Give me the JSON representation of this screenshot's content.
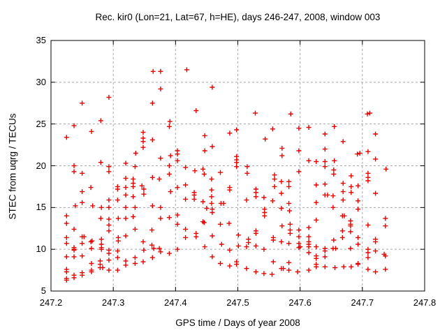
{
  "chart_data": {
    "type": "scatter",
    "title": "Rec. kir0 (Lon=21, Lat=67, h=HE), days 246-247, 2008, window 003",
    "xlabel": "GPS time / Days of year 2008",
    "ylabel": "STEC from uqrg / TECUs",
    "xlim": [
      247.2,
      247.8
    ],
    "ylim": [
      5,
      35
    ],
    "xticks": [
      247.2,
      247.3,
      247.4,
      247.5,
      247.6,
      247.7,
      247.8
    ],
    "yticks": [
      5,
      10,
      15,
      20,
      25,
      30,
      35
    ],
    "grid": true,
    "legend": "none",
    "marker": {
      "shape": "plus",
      "color": "#e60000"
    },
    "grid_color": "#a8a8a8",
    "axis_color": "#000000",
    "series_name": "STEC observations",
    "points": [
      [
        247.364,
        31.3
      ],
      [
        247.376,
        31.3
      ],
      [
        247.418,
        31.5
      ],
      [
        247.376,
        29.2
      ],
      [
        247.459,
        29.4
      ],
      [
        247.293,
        28.2
      ],
      [
        247.25,
        27.5
      ],
      [
        247.363,
        27.5
      ],
      [
        247.433,
        26.6
      ],
      [
        247.528,
        26.3
      ],
      [
        247.585,
        26.2
      ],
      [
        247.708,
        26.2
      ],
      [
        247.712,
        26.3
      ],
      [
        247.28,
        25.4
      ],
      [
        247.391,
        25.3
      ],
      [
        247.237,
        24.8
      ],
      [
        247.39,
        24.7
      ],
      [
        247.265,
        24.1
      ],
      [
        247.225,
        23.4
      ],
      [
        247.348,
        24.0
      ],
      [
        247.348,
        23.3
      ],
      [
        247.363,
        23.1
      ],
      [
        247.348,
        22.9
      ],
      [
        247.348,
        22.2
      ],
      [
        247.336,
        21.5
      ],
      [
        247.376,
        20.9
      ],
      [
        247.392,
        21.2
      ],
      [
        247.498,
        24.3
      ],
      [
        247.556,
        24.4
      ],
      [
        247.598,
        24.5
      ],
      [
        247.487,
        23.9
      ],
      [
        247.447,
        23.6
      ],
      [
        247.544,
        23.2
      ],
      [
        247.459,
        22.3
      ],
      [
        247.447,
        21.8
      ],
      [
        247.571,
        22.1
      ],
      [
        247.598,
        21.8
      ],
      [
        247.571,
        21.2
      ],
      [
        247.403,
        21.8
      ],
      [
        247.403,
        21.4
      ],
      [
        247.403,
        20.6
      ],
      [
        247.498,
        21.1
      ],
      [
        247.498,
        20.7
      ],
      [
        247.498,
        20.4
      ],
      [
        247.614,
        24.6
      ],
      [
        247.655,
        24.7
      ],
      [
        247.64,
        23.8
      ],
      [
        247.721,
        23.8
      ],
      [
        247.669,
        22.9
      ],
      [
        247.64,
        22.0
      ],
      [
        247.692,
        21.4
      ],
      [
        247.696,
        21.5
      ],
      [
        247.709,
        21.7
      ],
      [
        247.721,
        20.8
      ],
      [
        247.614,
        20.6
      ],
      [
        247.626,
        20.5
      ],
      [
        247.64,
        20.5
      ],
      [
        247.655,
        20.6
      ],
      [
        247.28,
        20.4
      ],
      [
        247.32,
        20.3
      ],
      [
        247.237,
        20.0
      ],
      [
        247.293,
        19.9
      ],
      [
        247.335,
        19.9
      ],
      [
        247.39,
        20.0
      ],
      [
        247.237,
        19.3
      ],
      [
        247.25,
        19.1
      ],
      [
        247.293,
        19.3
      ],
      [
        247.39,
        19.0
      ],
      [
        247.32,
        18.5
      ],
      [
        247.332,
        18.4
      ],
      [
        247.332,
        17.9
      ],
      [
        247.363,
        18.6
      ],
      [
        247.374,
        18.4
      ],
      [
        247.307,
        17.5
      ],
      [
        247.307,
        17.2
      ],
      [
        247.32,
        17.4
      ],
      [
        247.332,
        17.5
      ],
      [
        247.346,
        17.6
      ],
      [
        247.349,
        17.2
      ],
      [
        247.25,
        16.9
      ],
      [
        247.264,
        17.4
      ],
      [
        247.392,
        16.9
      ],
      [
        247.32,
        16.5
      ],
      [
        247.332,
        16.3
      ],
      [
        247.349,
        16.6
      ],
      [
        247.293,
        15.9
      ],
      [
        247.307,
        15.9
      ],
      [
        247.239,
        15.2
      ],
      [
        247.25,
        15.6
      ],
      [
        247.267,
        15.2
      ],
      [
        247.281,
        15.0
      ],
      [
        247.293,
        15.0
      ],
      [
        247.32,
        15.0
      ],
      [
        247.335,
        15.0
      ],
      [
        247.363,
        15.2
      ],
      [
        247.376,
        15.0
      ],
      [
        247.416,
        19.8
      ],
      [
        247.431,
        19.4
      ],
      [
        247.444,
        19.6
      ],
      [
        247.446,
        19.0
      ],
      [
        247.498,
        19.9
      ],
      [
        247.515,
        19.9
      ],
      [
        247.515,
        19.1
      ],
      [
        247.472,
        19.2
      ],
      [
        247.598,
        19.3
      ],
      [
        247.458,
        18.4
      ],
      [
        247.559,
        18.9
      ],
      [
        247.559,
        18.4
      ],
      [
        247.416,
        17.7
      ],
      [
        247.458,
        17.1
      ],
      [
        247.487,
        17.4
      ],
      [
        247.487,
        17.1
      ],
      [
        247.559,
        17.5
      ],
      [
        247.57,
        18.1
      ],
      [
        247.582,
        18.1
      ],
      [
        247.582,
        17.5
      ],
      [
        247.403,
        17.4
      ],
      [
        247.43,
        16.8
      ],
      [
        247.43,
        16.5
      ],
      [
        247.458,
        16.3
      ],
      [
        247.529,
        17.2
      ],
      [
        247.529,
        16.8
      ],
      [
        247.57,
        16.7
      ],
      [
        247.416,
        16.0
      ],
      [
        247.43,
        16.0
      ],
      [
        247.444,
        15.7
      ],
      [
        247.458,
        15.5
      ],
      [
        247.473,
        15.5
      ],
      [
        247.477,
        15.5
      ],
      [
        247.514,
        15.9
      ],
      [
        247.529,
        16.3
      ],
      [
        247.542,
        16.2
      ],
      [
        247.556,
        15.8
      ],
      [
        247.582,
        15.5
      ],
      [
        247.64,
        19.9
      ],
      [
        247.654,
        19.5
      ],
      [
        247.654,
        19.0
      ],
      [
        247.738,
        19.6
      ],
      [
        247.709,
        19.1
      ],
      [
        247.709,
        18.6
      ],
      [
        247.709,
        18.2
      ],
      [
        247.682,
        18.8
      ],
      [
        247.626,
        17.7
      ],
      [
        247.64,
        17.8
      ],
      [
        247.669,
        17.9
      ],
      [
        247.682,
        17.5
      ],
      [
        247.693,
        17.6
      ],
      [
        247.669,
        16.9
      ],
      [
        247.682,
        16.8
      ],
      [
        247.64,
        16.5
      ],
      [
        247.644,
        16.5
      ],
      [
        247.653,
        16.4
      ],
      [
        247.721,
        16.7
      ],
      [
        247.669,
        15.9
      ],
      [
        247.626,
        15.6
      ],
      [
        247.693,
        15.8
      ],
      [
        247.45,
        14.9
      ],
      [
        247.459,
        14.8
      ],
      [
        247.543,
        14.8
      ],
      [
        247.57,
        14.9
      ],
      [
        247.583,
        14.6
      ],
      [
        247.653,
        15.0
      ],
      [
        247.693,
        14.8
      ],
      [
        247.225,
        14.0
      ],
      [
        247.225,
        13.1
      ],
      [
        247.28,
        13.7
      ],
      [
        247.293,
        13.6
      ],
      [
        247.293,
        12.9
      ],
      [
        247.293,
        12.2
      ],
      [
        247.308,
        13.7
      ],
      [
        247.32,
        13.7
      ],
      [
        247.332,
        13.9
      ],
      [
        247.376,
        13.7
      ],
      [
        247.39,
        13.8
      ],
      [
        247.237,
        12.4
      ],
      [
        247.335,
        12.4
      ],
      [
        247.362,
        12.3
      ],
      [
        247.225,
        11.4
      ],
      [
        247.225,
        10.7
      ],
      [
        247.237,
        10.2
      ],
      [
        247.25,
        11.5
      ],
      [
        247.253,
        11.5
      ],
      [
        247.25,
        10.7
      ],
      [
        247.264,
        10.9
      ],
      [
        247.266,
        11.0
      ],
      [
        247.281,
        11.2
      ],
      [
        247.281,
        10.6
      ],
      [
        247.281,
        10.2
      ],
      [
        247.308,
        11.4
      ],
      [
        247.308,
        11.0
      ],
      [
        247.32,
        11.6
      ],
      [
        247.348,
        10.9
      ],
      [
        247.362,
        10.5
      ],
      [
        247.374,
        10.1
      ],
      [
        247.403,
        14.1
      ],
      [
        247.403,
        13.0
      ],
      [
        247.416,
        12.4
      ],
      [
        247.444,
        13.3
      ],
      [
        247.446,
        13.2
      ],
      [
        247.459,
        14.4
      ],
      [
        247.472,
        13.0
      ],
      [
        247.486,
        13.1
      ],
      [
        247.433,
        11.9
      ],
      [
        247.433,
        11.5
      ],
      [
        247.416,
        11.4
      ],
      [
        247.459,
        11.6
      ],
      [
        247.543,
        14.4
      ],
      [
        247.543,
        14.0
      ],
      [
        247.529,
        12.2
      ],
      [
        247.529,
        11.9
      ],
      [
        247.571,
        12.8
      ],
      [
        247.584,
        13.0
      ],
      [
        247.584,
        12.3
      ],
      [
        247.584,
        11.9
      ],
      [
        247.598,
        12.3
      ],
      [
        247.598,
        11.5
      ],
      [
        247.501,
        11.7
      ],
      [
        247.517,
        11.2
      ],
      [
        247.517,
        10.8
      ],
      [
        247.501,
        10.4
      ],
      [
        247.514,
        10.3
      ],
      [
        247.529,
        10.4
      ],
      [
        247.474,
        10.6
      ],
      [
        247.447,
        10.3
      ],
      [
        247.557,
        11.4
      ],
      [
        247.557,
        11.1
      ],
      [
        247.57,
        10.9
      ],
      [
        247.582,
        10.7
      ],
      [
        247.598,
        10.7
      ],
      [
        247.598,
        10.2
      ],
      [
        247.626,
        13.5
      ],
      [
        247.668,
        14.0
      ],
      [
        247.671,
        14.0
      ],
      [
        247.681,
        13.4
      ],
      [
        247.681,
        13.0
      ],
      [
        247.681,
        12.8
      ],
      [
        247.614,
        12.6
      ],
      [
        247.614,
        11.5
      ],
      [
        247.668,
        12.2
      ],
      [
        247.681,
        12.1
      ],
      [
        247.668,
        11.4
      ],
      [
        247.654,
        11.1
      ],
      [
        247.693,
        11.4
      ],
      [
        247.693,
        10.6
      ],
      [
        247.614,
        10.9
      ],
      [
        247.614,
        10.6
      ],
      [
        247.614,
        10.3
      ],
      [
        247.6,
        10.3
      ],
      [
        247.626,
        10.3
      ],
      [
        247.64,
        10.1
      ],
      [
        247.653,
        10.1
      ],
      [
        247.657,
        10.1
      ],
      [
        247.681,
        10.1
      ],
      [
        247.709,
        12.9
      ],
      [
        247.737,
        13.7
      ],
      [
        247.737,
        12.8
      ],
      [
        247.721,
        11.2
      ],
      [
        247.721,
        10.9
      ],
      [
        247.237,
        10.0
      ],
      [
        247.265,
        10.1
      ],
      [
        247.281,
        10.0
      ],
      [
        247.349,
        9.9
      ],
      [
        247.365,
        10.1
      ],
      [
        247.403,
        10.0
      ],
      [
        247.487,
        9.9
      ],
      [
        247.542,
        10.0
      ],
      [
        247.709,
        10.0
      ],
      [
        247.237,
        9.9
      ],
      [
        247.293,
        9.9
      ],
      [
        247.293,
        9.5
      ],
      [
        247.307,
        9.8
      ],
      [
        247.376,
        9.7
      ],
      [
        247.39,
        9.5
      ],
      [
        247.225,
        9.1
      ],
      [
        247.237,
        9.1
      ],
      [
        247.25,
        9.2
      ],
      [
        247.307,
        9.0
      ],
      [
        247.32,
        8.6
      ],
      [
        247.335,
        9.0
      ],
      [
        247.348,
        8.5
      ],
      [
        247.363,
        9.0
      ],
      [
        247.32,
        8.1
      ],
      [
        247.335,
        8.3
      ],
      [
        247.265,
        8.3
      ],
      [
        247.279,
        8.6
      ],
      [
        247.279,
        8.2
      ],
      [
        247.293,
        8.7
      ],
      [
        247.279,
        7.8
      ],
      [
        247.283,
        7.8
      ],
      [
        247.293,
        7.5
      ],
      [
        247.307,
        7.5
      ],
      [
        247.225,
        7.6
      ],
      [
        247.225,
        7.3
      ],
      [
        247.237,
        6.9
      ],
      [
        247.25,
        7.2
      ],
      [
        247.25,
        6.9
      ],
      [
        247.265,
        7.5
      ],
      [
        247.265,
        7.3
      ],
      [
        247.225,
        6.5
      ],
      [
        247.237,
        6.6
      ],
      [
        247.225,
        6.3
      ],
      [
        247.64,
        9.8
      ],
      [
        247.626,
        9.2
      ],
      [
        247.626,
        8.9
      ],
      [
        247.64,
        9.1
      ],
      [
        247.614,
        9.6
      ],
      [
        247.709,
        9.6
      ],
      [
        247.721,
        9.8
      ],
      [
        247.735,
        9.4
      ],
      [
        247.737,
        9.2
      ],
      [
        247.459,
        9.1
      ],
      [
        247.498,
        8.5
      ],
      [
        247.498,
        8.2
      ],
      [
        247.472,
        8.3
      ],
      [
        247.487,
        8.0
      ],
      [
        247.514,
        7.7
      ],
      [
        247.529,
        7.3
      ],
      [
        247.542,
        7.1
      ],
      [
        247.555,
        7.0
      ],
      [
        247.557,
        8.5
      ],
      [
        247.57,
        7.7
      ],
      [
        247.573,
        7.7
      ],
      [
        247.582,
        8.4
      ],
      [
        247.582,
        7.5
      ],
      [
        247.596,
        7.3
      ],
      [
        247.626,
        8.2
      ],
      [
        247.626,
        7.9
      ],
      [
        247.64,
        7.9
      ],
      [
        247.656,
        7.8
      ],
      [
        247.67,
        7.9
      ],
      [
        247.682,
        7.9
      ],
      [
        247.693,
        8.3
      ],
      [
        247.693,
        8.2
      ],
      [
        247.614,
        7.5
      ],
      [
        247.709,
        7.6
      ],
      [
        247.721,
        7.3
      ],
      [
        247.737,
        7.6
      ],
      [
        247.709,
        9.0
      ]
    ]
  }
}
